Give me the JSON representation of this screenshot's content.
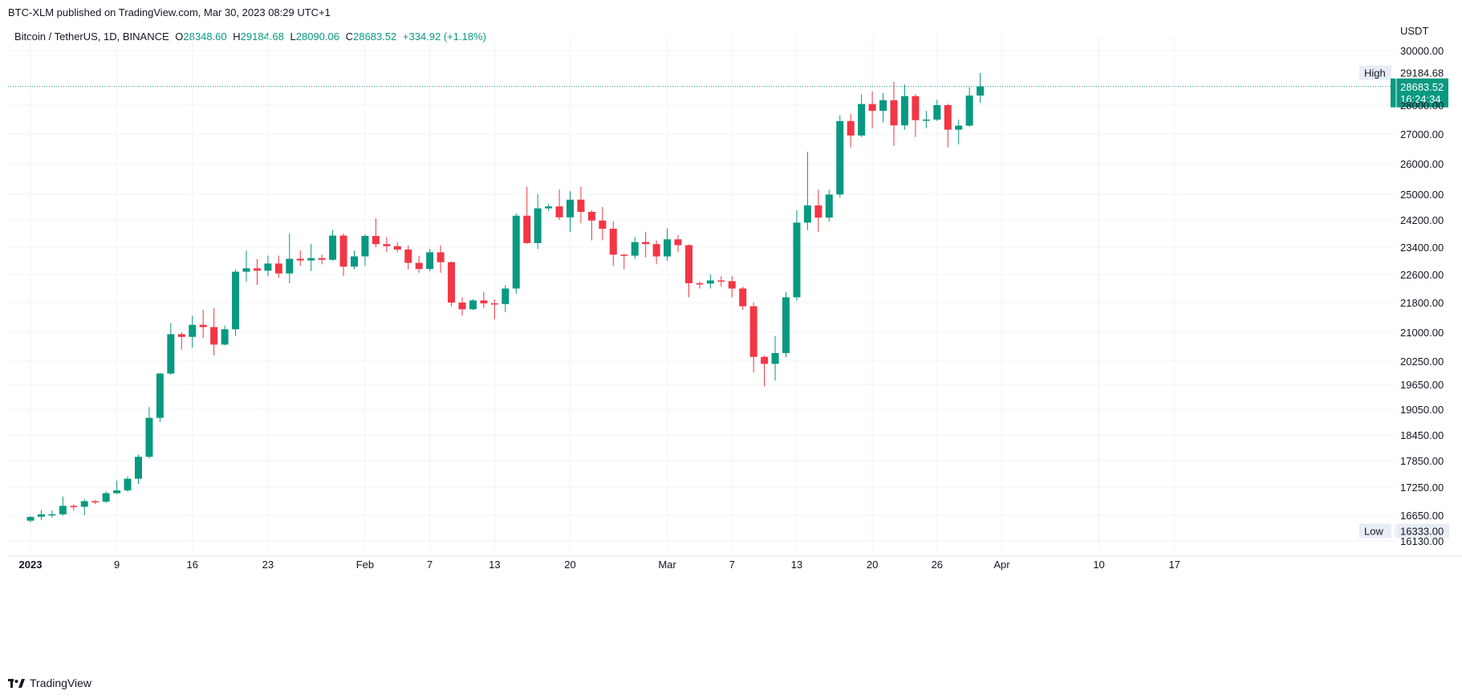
{
  "header": {
    "published": "BTC-XLM published on TradingView.com, Mar 30, 2023 08:29 UTC+1"
  },
  "legend": {
    "symbol": "Bitcoin / TetherUS, 1D, BINANCE",
    "o_label": "O",
    "o_value": "28348.60",
    "h_label": "H",
    "h_value": "29184.68",
    "l_label": "L",
    "l_value": "28090.06",
    "c_label": "C",
    "c_value": "28683.52",
    "change": "+334.92 (+1.18%)"
  },
  "footer": {
    "brand": "TradingView"
  },
  "colors": {
    "up": "#089981",
    "down": "#f23645",
    "grid": "#f0f3fa",
    "text": "#131722"
  },
  "chart_data": {
    "type": "candlestick",
    "currency": "USDT",
    "y_ticks": [
      {
        "value": 30000,
        "label": "30000.00"
      },
      {
        "value": 28000,
        "label": "28000.00"
      },
      {
        "value": 27000,
        "label": "27000.00"
      },
      {
        "value": 26000,
        "label": "26000.00"
      },
      {
        "value": 25000,
        "label": "25000.00"
      },
      {
        "value": 24200,
        "label": "24200.00"
      },
      {
        "value": 23400,
        "label": "23400.00"
      },
      {
        "value": 22600,
        "label": "22600.00"
      },
      {
        "value": 21800,
        "label": "21800.00"
      },
      {
        "value": 21000,
        "label": "21000.00"
      },
      {
        "value": 20250,
        "label": "20250.00"
      },
      {
        "value": 19650,
        "label": "19650.00"
      },
      {
        "value": 19050,
        "label": "19050.00"
      },
      {
        "value": 18450,
        "label": "18450.00"
      },
      {
        "value": 17850,
        "label": "17850.00"
      },
      {
        "value": 17250,
        "label": "17250.00"
      },
      {
        "value": 16650,
        "label": "16650.00"
      },
      {
        "value": 16130,
        "label": "16130.00"
      }
    ],
    "x_ticks": [
      {
        "date": "2023-01-01",
        "label": "2023",
        "bold": true
      },
      {
        "date": "2023-01-09",
        "label": "9"
      },
      {
        "date": "2023-01-16",
        "label": "16"
      },
      {
        "date": "2023-01-23",
        "label": "23"
      },
      {
        "date": "2023-02-01",
        "label": "Feb"
      },
      {
        "date": "2023-02-07",
        "label": "7"
      },
      {
        "date": "2023-02-13",
        "label": "13"
      },
      {
        "date": "2023-02-20",
        "label": "20"
      },
      {
        "date": "2023-03-01",
        "label": "Mar"
      },
      {
        "date": "2023-03-07",
        "label": "7"
      },
      {
        "date": "2023-03-13",
        "label": "13"
      },
      {
        "date": "2023-03-20",
        "label": "20"
      },
      {
        "date": "2023-03-26",
        "label": "26"
      },
      {
        "date": "2023-04-01",
        "label": "Apr"
      },
      {
        "date": "2023-04-10",
        "label": "10"
      },
      {
        "date": "2023-04-17",
        "label": "17"
      }
    ],
    "markers": {
      "high_label": "High",
      "high_value": 29184.68,
      "high_text": "29184.68",
      "low_label": "Low",
      "low_value": 16333.0,
      "low_text": "16333.00",
      "last_value": 28683.52,
      "last_text": "28683.52",
      "countdown": "16:24:34"
    },
    "candles": [
      {
        "d": "2023-01-01",
        "o": 16540,
        "h": 16630,
        "l": 16500,
        "c": 16615
      },
      {
        "d": "2023-01-02",
        "o": 16620,
        "h": 16760,
        "l": 16550,
        "c": 16670
      },
      {
        "d": "2023-01-03",
        "o": 16670,
        "h": 16750,
        "l": 16600,
        "c": 16670
      },
      {
        "d": "2023-01-04",
        "o": 16670,
        "h": 17050,
        "l": 16640,
        "c": 16850
      },
      {
        "d": "2023-01-05",
        "o": 16850,
        "h": 16880,
        "l": 16750,
        "c": 16830
      },
      {
        "d": "2023-01-06",
        "o": 16830,
        "h": 17000,
        "l": 16650,
        "c": 16950
      },
      {
        "d": "2023-01-07",
        "o": 16950,
        "h": 16970,
        "l": 16890,
        "c": 16940
      },
      {
        "d": "2023-01-08",
        "o": 16940,
        "h": 17160,
        "l": 16910,
        "c": 17120
      },
      {
        "d": "2023-01-09",
        "o": 17120,
        "h": 17400,
        "l": 17100,
        "c": 17180
      },
      {
        "d": "2023-01-10",
        "o": 17180,
        "h": 17490,
        "l": 17150,
        "c": 17440
      },
      {
        "d": "2023-01-11",
        "o": 17440,
        "h": 17990,
        "l": 17320,
        "c": 17940
      },
      {
        "d": "2023-01-12",
        "o": 17940,
        "h": 19100,
        "l": 17900,
        "c": 18850
      },
      {
        "d": "2023-01-13",
        "o": 18850,
        "h": 19950,
        "l": 18750,
        "c": 19930
      },
      {
        "d": "2023-01-14",
        "o": 19930,
        "h": 21250,
        "l": 19900,
        "c": 20950
      },
      {
        "d": "2023-01-15",
        "o": 20950,
        "h": 21000,
        "l": 20550,
        "c": 20880
      },
      {
        "d": "2023-01-16",
        "o": 20880,
        "h": 21450,
        "l": 20600,
        "c": 21200
      },
      {
        "d": "2023-01-17",
        "o": 21200,
        "h": 21600,
        "l": 20850,
        "c": 21140
      },
      {
        "d": "2023-01-18",
        "o": 21140,
        "h": 21650,
        "l": 20400,
        "c": 20680
      },
      {
        "d": "2023-01-19",
        "o": 20680,
        "h": 21180,
        "l": 20660,
        "c": 21080
      },
      {
        "d": "2023-01-20",
        "o": 21080,
        "h": 22750,
        "l": 20900,
        "c": 22680
      },
      {
        "d": "2023-01-21",
        "o": 22680,
        "h": 23300,
        "l": 22400,
        "c": 22780
      },
      {
        "d": "2023-01-22",
        "o": 22780,
        "h": 23050,
        "l": 22300,
        "c": 22710
      },
      {
        "d": "2023-01-23",
        "o": 22710,
        "h": 23150,
        "l": 22550,
        "c": 22920
      },
      {
        "d": "2023-01-24",
        "o": 22920,
        "h": 23150,
        "l": 22500,
        "c": 22630
      },
      {
        "d": "2023-01-25",
        "o": 22630,
        "h": 23800,
        "l": 22350,
        "c": 23060
      },
      {
        "d": "2023-01-26",
        "o": 23060,
        "h": 23300,
        "l": 22850,
        "c": 23010
      },
      {
        "d": "2023-01-27",
        "o": 23010,
        "h": 23500,
        "l": 22700,
        "c": 23080
      },
      {
        "d": "2023-01-28",
        "o": 23080,
        "h": 23180,
        "l": 22900,
        "c": 23030
      },
      {
        "d": "2023-01-29",
        "o": 23030,
        "h": 23900,
        "l": 23000,
        "c": 23740
      },
      {
        "d": "2023-01-30",
        "o": 23740,
        "h": 23800,
        "l": 22550,
        "c": 22830
      },
      {
        "d": "2023-01-31",
        "o": 22830,
        "h": 23300,
        "l": 22750,
        "c": 23130
      },
      {
        "d": "2023-02-01",
        "o": 23130,
        "h": 23780,
        "l": 22850,
        "c": 23730
      },
      {
        "d": "2023-02-02",
        "o": 23730,
        "h": 24250,
        "l": 23400,
        "c": 23490
      },
      {
        "d": "2023-02-03",
        "o": 23490,
        "h": 23700,
        "l": 23250,
        "c": 23430
      },
      {
        "d": "2023-02-04",
        "o": 23430,
        "h": 23550,
        "l": 23250,
        "c": 23330
      },
      {
        "d": "2023-02-05",
        "o": 23330,
        "h": 23450,
        "l": 22750,
        "c": 22940
      },
      {
        "d": "2023-02-06",
        "o": 22940,
        "h": 23150,
        "l": 22650,
        "c": 22760
      },
      {
        "d": "2023-02-07",
        "o": 22760,
        "h": 23350,
        "l": 22700,
        "c": 23250
      },
      {
        "d": "2023-02-08",
        "o": 23250,
        "h": 23450,
        "l": 22650,
        "c": 22960
      },
      {
        "d": "2023-02-09",
        "o": 22960,
        "h": 22990,
        "l": 21700,
        "c": 21800
      },
      {
        "d": "2023-02-10",
        "o": 21800,
        "h": 21950,
        "l": 21450,
        "c": 21620
      },
      {
        "d": "2023-02-11",
        "o": 21620,
        "h": 21900,
        "l": 21600,
        "c": 21860
      },
      {
        "d": "2023-02-12",
        "o": 21860,
        "h": 22100,
        "l": 21650,
        "c": 21780
      },
      {
        "d": "2023-02-13",
        "o": 21780,
        "h": 21890,
        "l": 21350,
        "c": 21760
      },
      {
        "d": "2023-02-14",
        "o": 21760,
        "h": 22300,
        "l": 21540,
        "c": 22200
      },
      {
        "d": "2023-02-15",
        "o": 22200,
        "h": 24400,
        "l": 22050,
        "c": 24330
      },
      {
        "d": "2023-02-16",
        "o": 24330,
        "h": 25250,
        "l": 23500,
        "c": 23520
      },
      {
        "d": "2023-02-17",
        "o": 23520,
        "h": 25000,
        "l": 23350,
        "c": 24560
      },
      {
        "d": "2023-02-18",
        "o": 24560,
        "h": 24700,
        "l": 24470,
        "c": 24620
      },
      {
        "d": "2023-02-19",
        "o": 24620,
        "h": 25150,
        "l": 24200,
        "c": 24280
      },
      {
        "d": "2023-02-20",
        "o": 24280,
        "h": 25100,
        "l": 23850,
        "c": 24830
      },
      {
        "d": "2023-02-21",
        "o": 24830,
        "h": 25250,
        "l": 24100,
        "c": 24450
      },
      {
        "d": "2023-02-22",
        "o": 24450,
        "h": 24500,
        "l": 23600,
        "c": 24180
      },
      {
        "d": "2023-02-23",
        "o": 24180,
        "h": 24600,
        "l": 23600,
        "c": 23940
      },
      {
        "d": "2023-02-24",
        "o": 23940,
        "h": 24150,
        "l": 22850,
        "c": 23180
      },
      {
        "d": "2023-02-25",
        "o": 23180,
        "h": 23200,
        "l": 22750,
        "c": 23150
      },
      {
        "d": "2023-02-26",
        "o": 23150,
        "h": 23700,
        "l": 23050,
        "c": 23550
      },
      {
        "d": "2023-02-27",
        "o": 23550,
        "h": 23850,
        "l": 23100,
        "c": 23490
      },
      {
        "d": "2023-02-28",
        "o": 23490,
        "h": 23600,
        "l": 22900,
        "c": 23130
      },
      {
        "d": "2023-03-01",
        "o": 23130,
        "h": 23950,
        "l": 23000,
        "c": 23630
      },
      {
        "d": "2023-03-02",
        "o": 23630,
        "h": 23750,
        "l": 23250,
        "c": 23460
      },
      {
        "d": "2023-03-03",
        "o": 23460,
        "h": 23480,
        "l": 21950,
        "c": 22350
      },
      {
        "d": "2023-03-04",
        "o": 22350,
        "h": 22400,
        "l": 22200,
        "c": 22340
      },
      {
        "d": "2023-03-05",
        "o": 22340,
        "h": 22600,
        "l": 22200,
        "c": 22430
      },
      {
        "d": "2023-03-06",
        "o": 22430,
        "h": 22550,
        "l": 22250,
        "c": 22410
      },
      {
        "d": "2023-03-07",
        "o": 22410,
        "h": 22550,
        "l": 21950,
        "c": 22200
      },
      {
        "d": "2023-03-08",
        "o": 22200,
        "h": 22250,
        "l": 21600,
        "c": 21700
      },
      {
        "d": "2023-03-09",
        "o": 21700,
        "h": 21800,
        "l": 19950,
        "c": 20360
      },
      {
        "d": "2023-03-10",
        "o": 20360,
        "h": 20400,
        "l": 19600,
        "c": 20180
      },
      {
        "d": "2023-03-11",
        "o": 20180,
        "h": 20900,
        "l": 19750,
        "c": 20460
      },
      {
        "d": "2023-03-12",
        "o": 20460,
        "h": 22100,
        "l": 20350,
        "c": 21950
      },
      {
        "d": "2023-03-13",
        "o": 21950,
        "h": 24500,
        "l": 21850,
        "c": 24120
      },
      {
        "d": "2023-03-14",
        "o": 24120,
        "h": 26400,
        "l": 23900,
        "c": 24650
      },
      {
        "d": "2023-03-15",
        "o": 24650,
        "h": 25150,
        "l": 23850,
        "c": 24270
      },
      {
        "d": "2023-03-16",
        "o": 24270,
        "h": 25150,
        "l": 24150,
        "c": 24990
      },
      {
        "d": "2023-03-17",
        "o": 24990,
        "h": 27650,
        "l": 24900,
        "c": 27450
      },
      {
        "d": "2023-03-18",
        "o": 27450,
        "h": 27700,
        "l": 26550,
        "c": 26950
      },
      {
        "d": "2023-03-19",
        "o": 26950,
        "h": 28400,
        "l": 26900,
        "c": 28040
      },
      {
        "d": "2023-03-20",
        "o": 28040,
        "h": 28500,
        "l": 27200,
        "c": 27800
      },
      {
        "d": "2023-03-21",
        "o": 27800,
        "h": 28450,
        "l": 27400,
        "c": 28180
      },
      {
        "d": "2023-03-22",
        "o": 28180,
        "h": 28850,
        "l": 26600,
        "c": 27300
      },
      {
        "d": "2023-03-23",
        "o": 27300,
        "h": 28750,
        "l": 27150,
        "c": 28330
      },
      {
        "d": "2023-03-24",
        "o": 28330,
        "h": 28400,
        "l": 26900,
        "c": 27480
      },
      {
        "d": "2023-03-25",
        "o": 27480,
        "h": 27800,
        "l": 27200,
        "c": 27500
      },
      {
        "d": "2023-03-26",
        "o": 27500,
        "h": 28200,
        "l": 27450,
        "c": 28000
      },
      {
        "d": "2023-03-27",
        "o": 28000,
        "h": 28050,
        "l": 26550,
        "c": 27150
      },
      {
        "d": "2023-03-28",
        "o": 27150,
        "h": 27500,
        "l": 26650,
        "c": 27290
      },
      {
        "d": "2023-03-29",
        "o": 27290,
        "h": 28650,
        "l": 27250,
        "c": 28350
      },
      {
        "d": "2023-03-30",
        "o": 28350,
        "h": 29184.68,
        "l": 28090.06,
        "c": 28683.52
      }
    ]
  }
}
